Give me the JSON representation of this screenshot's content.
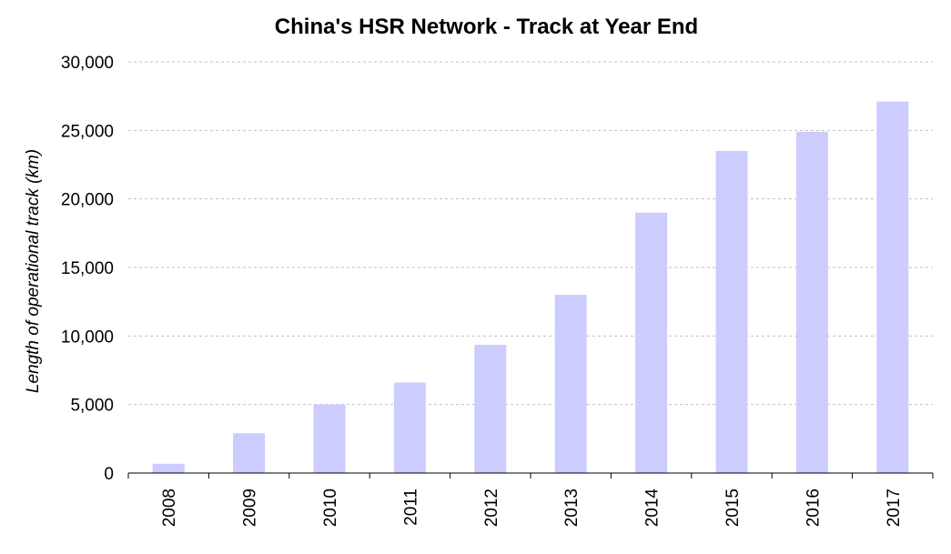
{
  "chart_data": {
    "type": "bar",
    "title": "China's HSR Network - Track at Year End",
    "xlabel": "",
    "ylabel": "Length of operational track (km)",
    "categories": [
      "2008",
      "2009",
      "2010",
      "2011",
      "2012",
      "2013",
      "2014",
      "2015",
      "2016",
      "2017"
    ],
    "values": [
      672,
      2900,
      5000,
      6600,
      9356,
      13000,
      19000,
      23500,
      24900,
      27100
    ],
    "ylim": [
      0,
      30000
    ],
    "yticks": [
      0,
      5000,
      10000,
      15000,
      20000,
      25000,
      30000
    ],
    "ytick_labels": [
      "0",
      "5,000",
      "10,000",
      "15,000",
      "20,000",
      "25,000",
      "30,000"
    ],
    "grid": true,
    "legend": "none",
    "bar_color": "#ccccff",
    "grid_color": "#c0c0c0"
  }
}
